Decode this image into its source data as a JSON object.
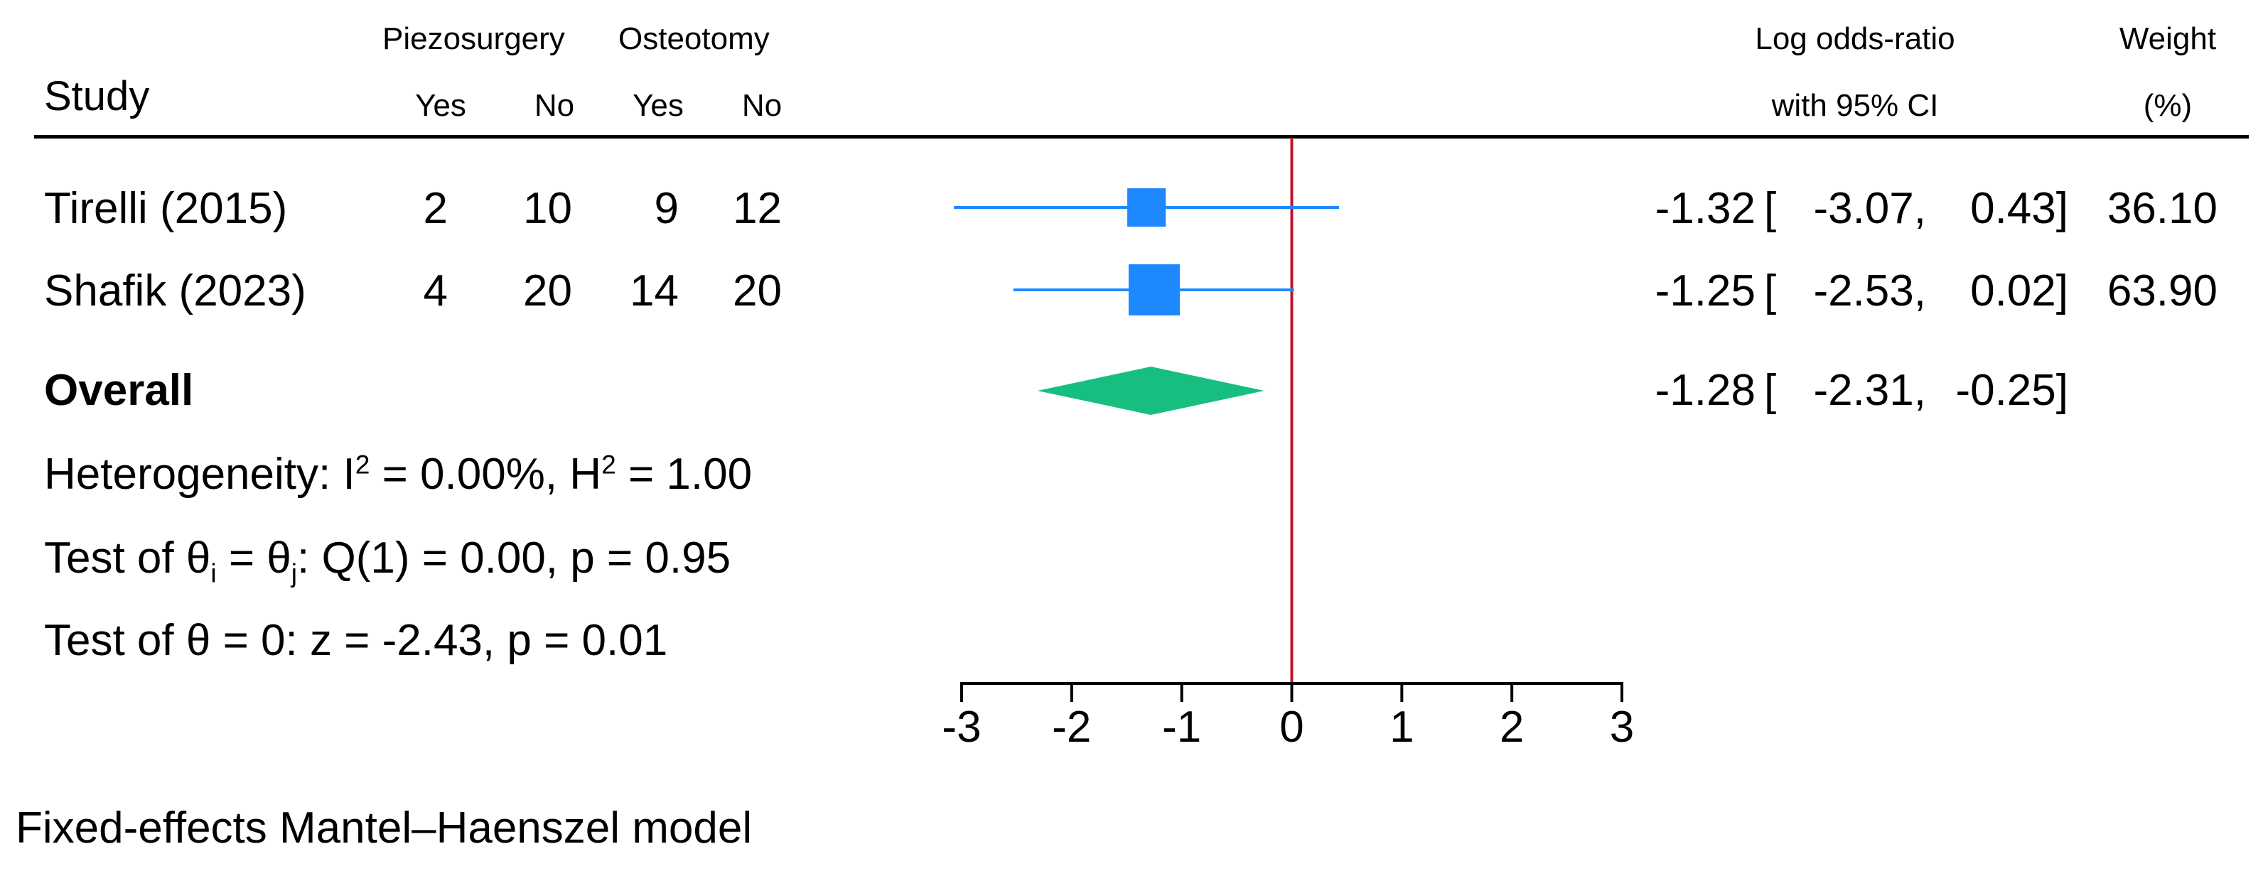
{
  "header": {
    "study": "Study",
    "group1": "Piezosurgery",
    "group2": "Osteotomy",
    "yes1": "Yes",
    "no1": "No",
    "yes2": "Yes",
    "no2": "No",
    "effect_line1": "Log odds-ratio",
    "effect_line2": "with 95% CI",
    "weight_line1": "Weight",
    "weight_line2": "(%)"
  },
  "studies": [
    {
      "name": "Tirelli (2015)",
      "yes1": "2",
      "no1": "10",
      "yes2": "9",
      "no2": "12",
      "est": "-1.32",
      "lo": "-3.07,",
      "hi": "0.43]",
      "weight": "36.10"
    },
    {
      "name": "Shafik (2023)",
      "yes1": "4",
      "no1": "20",
      "yes2": "14",
      "no2": "20",
      "est": "-1.25",
      "lo": "-2.53,",
      "hi": "0.02]",
      "weight": "63.90"
    }
  ],
  "overall": {
    "label": "Overall",
    "est": "-1.28",
    "lo": "-2.31,",
    "hi": "-0.25]"
  },
  "stats": {
    "het_a": "Heterogeneity: I",
    "het_sup1": "2",
    "het_b": " = 0.00%, H",
    "het_sup2": "2",
    "het_c": " = 1.00",
    "test1_a": "Test of θ",
    "test1_sub1": "i",
    "test1_b": " = θ",
    "test1_sub2": "j",
    "test1_c": ": Q(1) = 0.00, p = 0.95",
    "test2": "Test of θ = 0: z = -2.43, p = 0.01"
  },
  "footnote": "Fixed-effects Mantel–Haenszel model",
  "bracket_open": "[",
  "chart_data": {
    "type": "forest",
    "xlim": [
      -3,
      3
    ],
    "xticks": [
      "-3",
      "-2",
      "-1",
      "0",
      "1",
      "2",
      "3"
    ],
    "reference_line": 0,
    "studies": [
      {
        "name": "Tirelli (2015)",
        "estimate": -1.32,
        "ci_low": -3.07,
        "ci_high": 0.43,
        "weight": 36.1
      },
      {
        "name": "Shafik (2023)",
        "estimate": -1.25,
        "ci_low": -2.53,
        "ci_high": 0.02,
        "weight": 63.9
      }
    ],
    "overall": {
      "estimate": -1.28,
      "ci_low": -2.31,
      "ci_high": -0.25
    },
    "colors": {
      "study": "#1e88ff",
      "overall": "#16bf80",
      "reference": "#c8102e",
      "axis": "#000000"
    }
  }
}
